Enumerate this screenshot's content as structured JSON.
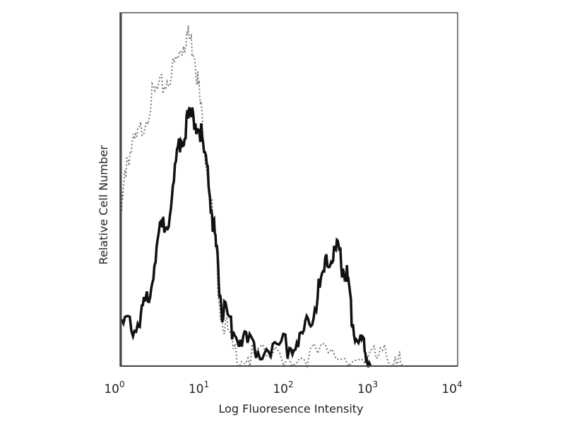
{
  "chart_data": {
    "type": "line",
    "title": "",
    "xlabel": "Log Fluoresence Intensity",
    "ylabel": "Relative Cell Number",
    "xscale": "log",
    "xlim": [
      1,
      10000
    ],
    "ylim": [
      0,
      100
    ],
    "grid": false,
    "legend": "none",
    "xticks": [
      {
        "value": 1,
        "base": "10",
        "exp": "0"
      },
      {
        "value": 10,
        "base": "10",
        "exp": "1"
      },
      {
        "value": 100,
        "base": "10",
        "exp": "2"
      },
      {
        "value": 1000,
        "base": "10",
        "exp": "3"
      },
      {
        "value": 10000,
        "base": "10",
        "exp": "4"
      }
    ],
    "series": [
      {
        "style": "solid",
        "color": "#111111",
        "x": [
          1.05,
          1.62,
          2.14,
          2.88,
          3.89,
          5.13,
          6.61,
          8.71,
          11.2,
          13.5,
          16.2,
          21.9,
          32.4,
          57.5,
          102,
          151,
          219,
          295,
          380,
          479,
          575,
          776,
          933
        ],
        "y": [
          11,
          12,
          20,
          36,
          44,
          64,
          70,
          69,
          52,
          34,
          16,
          10,
          6,
          5,
          6,
          8,
          20,
          30,
          32,
          26,
          12,
          4,
          0
        ]
      },
      {
        "style": "dotted",
        "color": "#777777",
        "x": [
          1.05,
          1.2,
          1.62,
          2.4,
          3.47,
          5.13,
          6.17,
          7.59,
          9.12,
          12.3,
          15.5,
          21.9,
          38.9,
          123,
          324,
          1023,
          1820,
          2240
        ],
        "y": [
          44,
          59,
          64,
          76,
          80,
          88,
          94,
          90,
          72,
          44,
          16,
          4,
          2,
          3,
          3,
          2,
          3,
          0
        ]
      }
    ]
  }
}
